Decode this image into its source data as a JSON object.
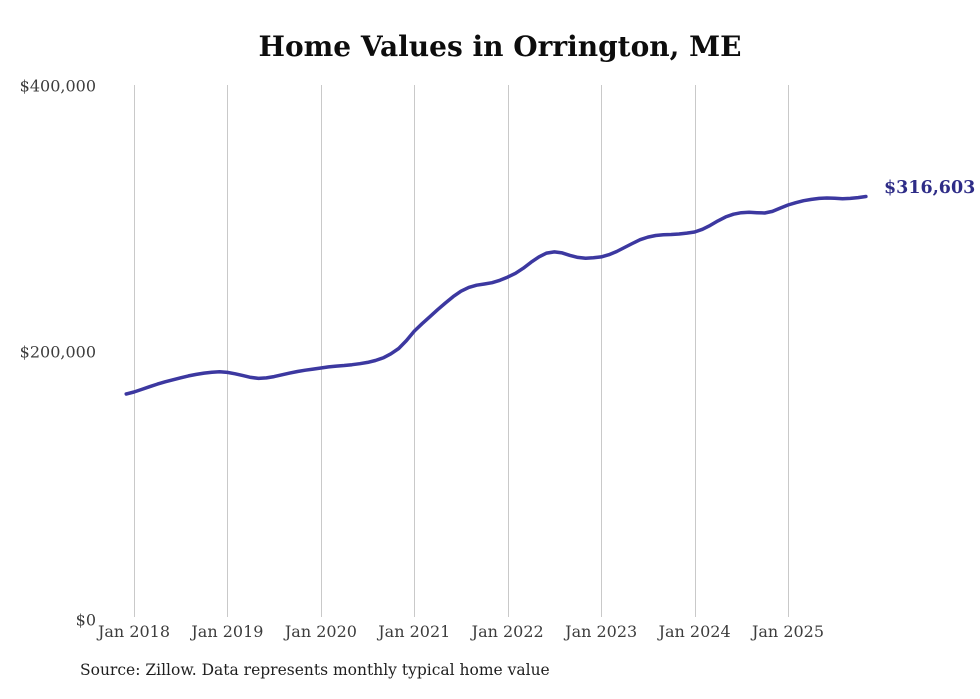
{
  "chart_data": {
    "type": "line",
    "title": "Home Values in Orrington, ME",
    "source_note": "Source: Zillow. Data represents monthly typical home value",
    "end_label": "$316,603",
    "end_value": 316603,
    "line_color": "#3c38a0",
    "end_label_color": "#2e2c87",
    "grid": "vertical-only",
    "legend": "none",
    "ylabel": "",
    "xlabel": "",
    "ylim": [
      0,
      400000
    ],
    "y_tick_labels": [
      "$400,000",
      "$200,000",
      "$0"
    ],
    "y_tick_values": [
      400000,
      200000,
      0
    ],
    "x_tick_labels": [
      "Jan 2018",
      "Jan 2019",
      "Jan 2020",
      "Jan 2021",
      "Jan 2022",
      "Jan 2023",
      "Jan 2024",
      "Jan 2025"
    ],
    "x_monthly_start": "Dec 2017",
    "x_monthly_end": "Nov 2025",
    "values": [
      169000,
      170500,
      172400,
      174400,
      176400,
      178100,
      179600,
      181100,
      182500,
      183600,
      184600,
      185300,
      185600,
      185100,
      184100,
      182700,
      181400,
      180600,
      181000,
      182000,
      183300,
      184600,
      185800,
      186800,
      187600,
      188400,
      189200,
      189800,
      190300,
      190900,
      191600,
      192600,
      194000,
      196000,
      199000,
      203000,
      209000,
      216000,
      221500,
      226800,
      232000,
      237000,
      241800,
      245800,
      248700,
      250300,
      251200,
      252200,
      254000,
      256400,
      259200,
      263000,
      267500,
      271500,
      274300,
      275200,
      274500,
      272600,
      271100,
      270500,
      270800,
      271500,
      273100,
      275500,
      278500,
      281500,
      284300,
      286300,
      287500,
      288000,
      288200,
      288600,
      289300,
      290100,
      292100,
      295000,
      298400,
      301400,
      303400,
      304500,
      304800,
      304500,
      304300,
      305500,
      308000,
      310300,
      312000,
      313500,
      314500,
      315200,
      315500,
      315300,
      314900,
      315200,
      315800,
      316603
    ]
  }
}
